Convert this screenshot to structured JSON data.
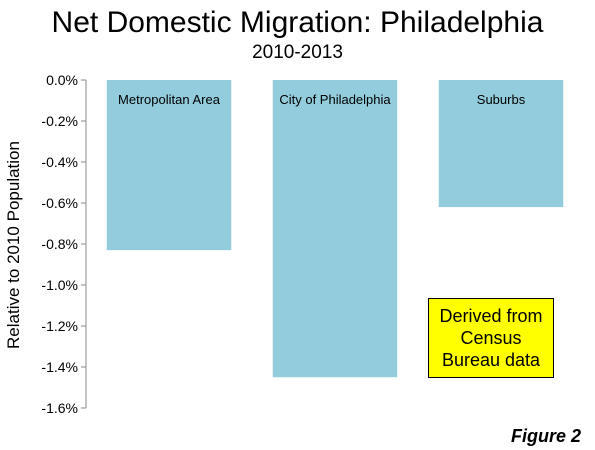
{
  "chart_data": {
    "type": "bar",
    "title": "Net Domestic Migration: Philadelphia",
    "subtitle": "2010-2013",
    "ylabel": "Relative to 2010 Population",
    "xlabel": "",
    "categories": [
      "Metropolitan Area",
      "City of Philadelphia",
      "Suburbs"
    ],
    "values": [
      -0.0083,
      -0.0145,
      -0.0062
    ],
    "ylim": [
      -0.016,
      0.0
    ],
    "yticks": [
      0.0,
      -0.002,
      -0.004,
      -0.006,
      -0.008,
      -0.01,
      -0.012,
      -0.014,
      -0.016
    ],
    "ytick_labels": [
      "0.0%",
      "-0.2%",
      "-0.4%",
      "-0.6%",
      "-0.8%",
      "-1.0%",
      "-1.2%",
      "-1.4%",
      "-1.6%"
    ],
    "grid": false,
    "bar_color": "#93cddd",
    "category_label_position": "inside-top"
  },
  "note": "Derived from Census Bureau data",
  "note_color": "#ffff00",
  "figure_label": "Figure 2"
}
